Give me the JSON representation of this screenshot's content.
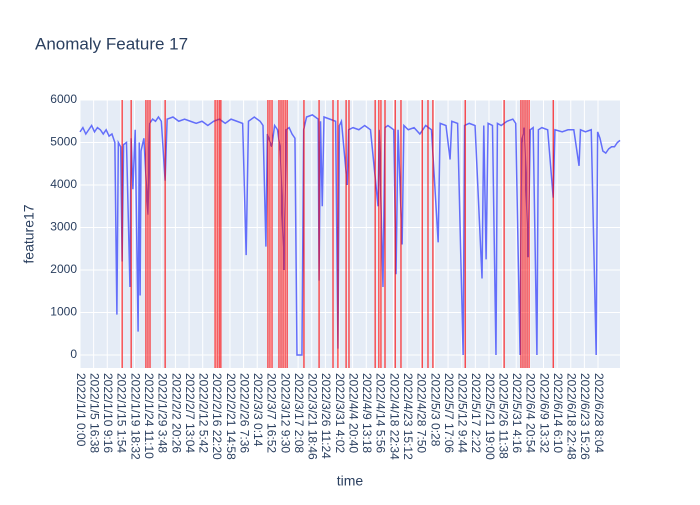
{
  "chart_data": {
    "type": "line",
    "title": "Anomaly Feature 17",
    "x_label": "time",
    "y_label": "feature17",
    "color": "#636efa",
    "anomaly_color": "#ff0000",
    "grid": true,
    "xlim": [
      0,
      185.9
    ],
    "ylim": [
      -306,
      6000
    ],
    "yticks": [
      0,
      1000,
      2000,
      3000,
      4000,
      5000,
      6000
    ],
    "xticks": [
      {
        "value": 0,
        "label": "2022/1/1 0:00"
      },
      {
        "value": 4.693,
        "label": "2022/1/5 16:38"
      },
      {
        "value": 9.386,
        "label": "2022/1/10 9:16"
      },
      {
        "value": 14.079,
        "label": "2022/1/15 1:54"
      },
      {
        "value": 18.772,
        "label": "2022/1/19 18:32"
      },
      {
        "value": 23.465,
        "label": "2022/1/24 11:10"
      },
      {
        "value": 28.158,
        "label": "2022/1/29 3:48"
      },
      {
        "value": 32.851,
        "label": "2022/2/2 20:26"
      },
      {
        "value": 37.544,
        "label": "2022/2/7 13:04"
      },
      {
        "value": 42.238,
        "label": "2022/2/12 5:42"
      },
      {
        "value": 46.931,
        "label": "2022/2/16 22:20"
      },
      {
        "value": 51.624,
        "label": "2022/2/21 14:58"
      },
      {
        "value": 56.317,
        "label": "2022/2/26 7:36"
      },
      {
        "value": 61.01,
        "label": "2022/3/3 0:14"
      },
      {
        "value": 65.703,
        "label": "2022/3/7 16:52"
      },
      {
        "value": 70.396,
        "label": "2022/3/12 9:30"
      },
      {
        "value": 75.089,
        "label": "2022/3/17 2:08"
      },
      {
        "value": 79.782,
        "label": "2022/3/21 18:46"
      },
      {
        "value": 84.475,
        "label": "2022/3/26 11:24"
      },
      {
        "value": 89.168,
        "label": "2022/3/31 4:02"
      },
      {
        "value": 93.861,
        "label": "2022/4/4 20:40"
      },
      {
        "value": 98.554,
        "label": "2022/4/9 13:18"
      },
      {
        "value": 103.247,
        "label": "2022/4/14 5:56"
      },
      {
        "value": 107.94,
        "label": "2022/4/18 22:34"
      },
      {
        "value": 112.633,
        "label": "2022/4/23 15:12"
      },
      {
        "value": 117.326,
        "label": "2022/4/28 7:50"
      },
      {
        "value": 122.019,
        "label": "2022/5/3 0:28"
      },
      {
        "value": 126.713,
        "label": "2022/5/7 17:06"
      },
      {
        "value": 131.406,
        "label": "2022/5/12 9:44"
      },
      {
        "value": 136.099,
        "label": "2022/5/17 2:22"
      },
      {
        "value": 140.792,
        "label": "2022/5/21 19:00"
      },
      {
        "value": 145.485,
        "label": "2022/5/26 11:38"
      },
      {
        "value": 150.178,
        "label": "2022/5/31 4:16"
      },
      {
        "value": 154.871,
        "label": "2022/6/4 20:54"
      },
      {
        "value": 159.564,
        "label": "2022/6/9 13:32"
      },
      {
        "value": 164.257,
        "label": "2022/6/14 6:10"
      },
      {
        "value": 168.95,
        "label": "2022/6/18 22:48"
      },
      {
        "value": 173.643,
        "label": "2022/6/23 15:26"
      },
      {
        "value": 178.336,
        "label": "2022/6/28 8:04"
      }
    ],
    "x": [
      0,
      1,
      2,
      3,
      4,
      5,
      6,
      7,
      8,
      9,
      10,
      11,
      12,
      12.7,
      13.2,
      14,
      14.5,
      15,
      16,
      17.2,
      17.6,
      18.2,
      19,
      20,
      20.4,
      20.7,
      21,
      22,
      23.4,
      24,
      25,
      26,
      27,
      28,
      29.3,
      30,
      32,
      34,
      36,
      38,
      40,
      42,
      44,
      46,
      48,
      50,
      52,
      54,
      56,
      57.2,
      58,
      60,
      62,
      63,
      64,
      64.5,
      66,
      67,
      68,
      69,
      70.2,
      71,
      72,
      73,
      74,
      74.7,
      75.5,
      76.4,
      77,
      78,
      80,
      82,
      82.3,
      82.8,
      83.4,
      84,
      86,
      88,
      88.8,
      89.3,
      90,
      92,
      92.5,
      94,
      96,
      98,
      100,
      102.6,
      103,
      104.3,
      105,
      106,
      108,
      108.8,
      109.5,
      110.9,
      111.5,
      113,
      115,
      117,
      119,
      121,
      123.3,
      124,
      126,
      127.4,
      128,
      130,
      131.9,
      132.4,
      134,
      136,
      138.4,
      139,
      139.8,
      140.5,
      142,
      143.2,
      143.7,
      145,
      147,
      149,
      150,
      151.5,
      152,
      153,
      154.3,
      155,
      156,
      157.3,
      157.8,
      159,
      161,
      162.9,
      163.5,
      166,
      168,
      170,
      171.8,
      172.3,
      174,
      176,
      177.7,
      178.2,
      179,
      180,
      181,
      182,
      183,
      184,
      185,
      185.9
    ],
    "values": [
      5250,
      5350,
      5200,
      5300,
      5400,
      5250,
      5350,
      5300,
      5200,
      5300,
      5150,
      5200,
      5000,
      950,
      5000,
      4900,
      2200,
      4950,
      5000,
      1600,
      5100,
      3900,
      5300,
      550,
      5000,
      1400,
      4800,
      5100,
      3300,
      5450,
      5550,
      5500,
      5600,
      5500,
      4100,
      5550,
      5600,
      5500,
      5550,
      5500,
      5450,
      5500,
      5400,
      5500,
      5550,
      5450,
      5550,
      5500,
      5450,
      2350,
      5500,
      5600,
      5500,
      5400,
      2550,
      5200,
      4900,
      5400,
      5300,
      4800,
      2000,
      5300,
      5350,
      5200,
      5100,
      0,
      0,
      0,
      5300,
      5600,
      5650,
      5550,
      1750,
      5500,
      3500,
      5600,
      5550,
      5500,
      150,
      5400,
      5500,
      4000,
      5300,
      5350,
      5300,
      5400,
      5300,
      3500,
      5300,
      1600,
      5350,
      5400,
      5300,
      1900,
      5300,
      2600,
      5400,
      5300,
      5350,
      5200,
      5400,
      5300,
      2650,
      5450,
      5400,
      4600,
      5500,
      5450,
      0,
      5400,
      5450,
      5400,
      1800,
      5400,
      2250,
      5450,
      5400,
      0,
      5450,
      5400,
      5500,
      5550,
      5450,
      0,
      5000,
      5350,
      2300,
      5300,
      5350,
      0,
      5300,
      5350,
      5300,
      3700,
      5300,
      5250,
      5300,
      5300,
      4450,
      5300,
      5250,
      5300,
      0,
      5250,
      5100,
      4800,
      4750,
      4850,
      4900,
      4900,
      5000,
      5050
    ],
    "anomaly_x": [
      14.5,
      17.6,
      22.7,
      23.4,
      24.1,
      29.3,
      46.5,
      47.2,
      47.9,
      48.5,
      64.7,
      65.4,
      66.1,
      68.5,
      69.2,
      69.9,
      70.6,
      71.3,
      77.1,
      82.3,
      87.1,
      88.8,
      91.6,
      92.6,
      101.6,
      102.9,
      103.6,
      105,
      108.5,
      110.5,
      117.8,
      119.8,
      121.5,
      132.6,
      146,
      151.8,
      152.5,
      153.2,
      153.9,
      154.6,
      162.9
    ]
  }
}
